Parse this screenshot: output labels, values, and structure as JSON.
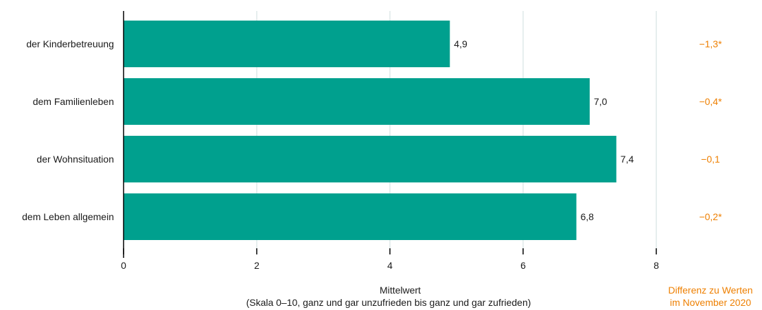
{
  "chart_data": {
    "type": "bar",
    "orientation": "horizontal",
    "categories": [
      "der Kinderbetreuung",
      "dem Familienleben",
      "der Wohnsituation",
      "dem Leben allgemein"
    ],
    "values": [
      4.9,
      7.0,
      7.4,
      6.8
    ],
    "value_labels": [
      "4,9",
      "7,0",
      "7,4",
      "6,8"
    ],
    "differences": [
      "−1,3*",
      "−0,4*",
      "−0,1",
      "−0,2*"
    ],
    "xlim": [
      0,
      8
    ],
    "x_ticks": [
      0,
      2,
      4,
      6,
      8
    ],
    "x_tick_labels": [
      "0",
      "2",
      "4",
      "6",
      "8"
    ],
    "xlabel": "Mittelwert",
    "xlabel_sub": "(Skala 0–10, ganz und gar unzufrieden bis ganz und gar zufrieden)",
    "diff_label_line1": "Differenz zu Werten",
    "diff_label_line2": "im November 2020",
    "grid": true,
    "colors": {
      "bar": "#00a08e",
      "difference": "#ee7f00",
      "axis": "#000000",
      "grid": "#dde9e9",
      "text": "#1a1a1a"
    }
  }
}
